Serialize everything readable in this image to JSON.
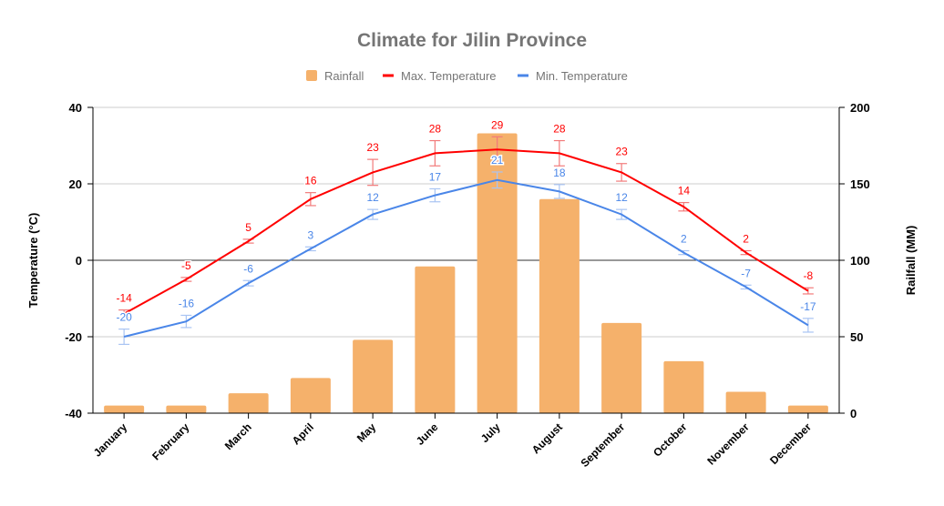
{
  "chart_data": {
    "type": "bar+line",
    "title": "Climate for Jilin Province",
    "legend_position": "top",
    "categories": [
      "January",
      "February",
      "March",
      "April",
      "May",
      "June",
      "July",
      "August",
      "September",
      "October",
      "November",
      "December"
    ],
    "y_left": {
      "label": "Temperature (°C)",
      "lim": [
        -40,
        40
      ],
      "ticks": [
        40,
        20,
        0,
        -20,
        -40
      ]
    },
    "y_right": {
      "label": "Railfall (MM)",
      "lim": [
        0,
        200
      ],
      "ticks": [
        200,
        150,
        100,
        50,
        0
      ]
    },
    "grid": true,
    "series": [
      {
        "name": "Rainfall",
        "type": "bar",
        "axis": "right",
        "color": "#f5b16b",
        "values": [
          5,
          5,
          13,
          23,
          48,
          96,
          183,
          140,
          59,
          34,
          14,
          5
        ]
      },
      {
        "name": "Max. Temperature",
        "type": "line",
        "axis": "left",
        "color": "#ff0000",
        "values": [
          -14,
          -5,
          5,
          16,
          23,
          28,
          29,
          28,
          23,
          14,
          2,
          -8
        ],
        "error": [
          1,
          0.5,
          0.5,
          1.7,
          3.4,
          3.3,
          3.3,
          3.3,
          2.3,
          1.1,
          0.5,
          0.8
        ]
      },
      {
        "name": "Min. Temperature",
        "type": "line",
        "axis": "left",
        "color": "#4a86e8",
        "values": [
          -20,
          -16,
          -6,
          3,
          12,
          17,
          21,
          18,
          12,
          2,
          -7,
          -17
        ],
        "error": [
          2,
          1.6,
          0.7,
          0.5,
          1.3,
          1.7,
          2.1,
          1.8,
          1.3,
          0.5,
          0.5,
          1.8
        ]
      }
    ]
  }
}
